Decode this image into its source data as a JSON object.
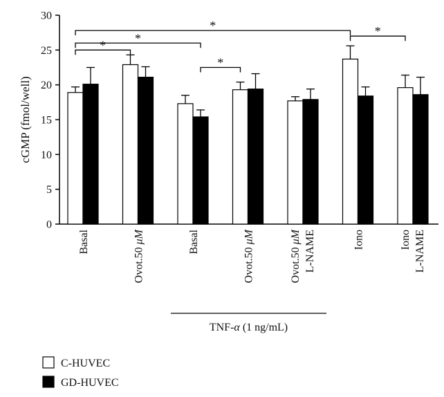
{
  "chart_data": {
    "type": "bar",
    "title": "",
    "ylabel": "cGMP (fmol/well)",
    "ylim": [
      0,
      30
    ],
    "yticks": [
      0,
      5,
      10,
      15,
      20,
      25,
      30
    ],
    "categories": [
      {
        "line1": "Basal",
        "line2": "",
        "italic": ""
      },
      {
        "line1": "Ovot.50 ",
        "line2": "",
        "italic": "μM"
      },
      {
        "line1": "Basal",
        "line2": "",
        "italic": ""
      },
      {
        "line1": "Ovot.50 ",
        "line2": "",
        "italic": "μM"
      },
      {
        "line1": "Ovot.50 ",
        "line2": "L-NAME",
        "italic": "μM"
      },
      {
        "line1": "Iono",
        "line2": "",
        "italic": ""
      },
      {
        "line1": "Iono",
        "line2": "L-NAME",
        "italic": ""
      }
    ],
    "series": [
      {
        "name": "C-HUVEC",
        "color": "#ffffff",
        "values": [
          18.9,
          22.9,
          17.3,
          19.3,
          17.7,
          23.7,
          19.6
        ],
        "errors": [
          0.8,
          1.4,
          1.2,
          1.1,
          0.6,
          1.9,
          1.8
        ]
      },
      {
        "name": "GD-HUVEC",
        "color": "#000000",
        "values": [
          20.1,
          21.1,
          15.4,
          19.4,
          17.9,
          18.4,
          18.6
        ],
        "errors": [
          2.4,
          1.5,
          1.0,
          2.2,
          1.5,
          1.3,
          2.5
        ]
      }
    ],
    "group_annotation": {
      "prefix": "TNF-",
      "italic": "α",
      "suffix": " (1 ng/mL)",
      "from_category": 2,
      "to_category": 4
    },
    "significance": [
      {
        "label": "*",
        "from": [
          0,
          0
        ],
        "to": [
          1,
          0
        ],
        "y": 25.0
      },
      {
        "label": "*",
        "from": [
          0,
          0
        ],
        "to": [
          2,
          1
        ],
        "y": 26.0
      },
      {
        "label": "*",
        "from": [
          0,
          0
        ],
        "to": [
          5,
          0
        ],
        "y": 27.8
      },
      {
        "label": "*",
        "from": [
          2,
          1
        ],
        "to": [
          3,
          0
        ],
        "y": 22.5
      },
      {
        "label": "*",
        "from": [
          5,
          0
        ],
        "to": [
          6,
          0
        ],
        "y": 27.0
      }
    ],
    "legend": {
      "placement": "bottom-left"
    }
  }
}
